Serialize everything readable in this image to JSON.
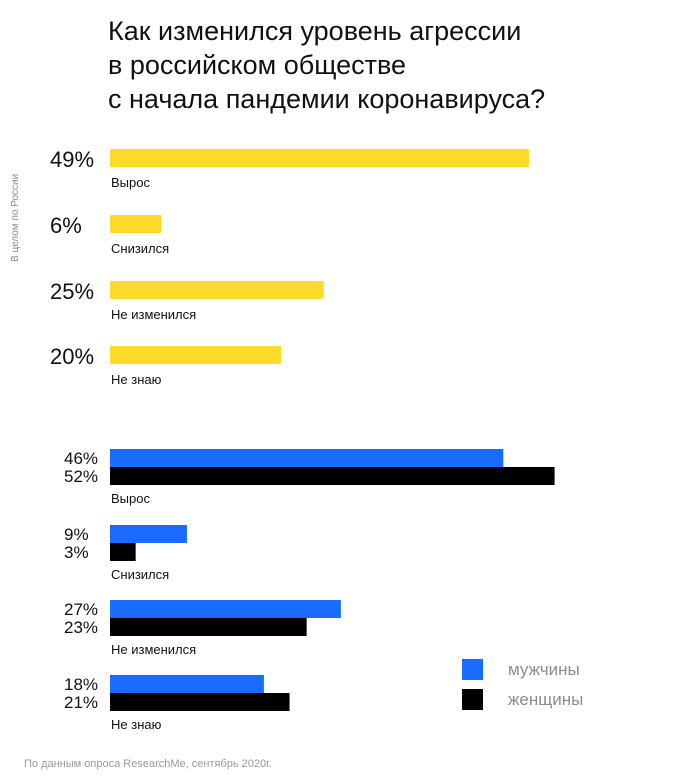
{
  "title_lines": [
    "Как изменился уровень агрессии",
    "в российском обществе",
    "с начала пандемии коронавируса?"
  ],
  "side_label": "В целом по России",
  "footnote": "По данным опроса ResearchMe, сентябрь 2020г.",
  "legend": {
    "men": "мужчины",
    "women": "женщины"
  },
  "colors": {
    "overall": "#FFDA2A",
    "men": "#1A6BFF",
    "women": "#000000"
  },
  "chart_data": [
    {
      "type": "bar",
      "orientation": "horizontal",
      "group": "В целом по России",
      "categories": [
        "Вырос",
        "Снизился",
        "Не изменился",
        "Не знаю"
      ],
      "series": [
        {
          "key": "overall",
          "values": [
            49,
            6,
            25,
            20
          ],
          "labels": [
            "49%",
            "6%",
            "25%",
            "20%"
          ]
        }
      ]
    },
    {
      "type": "bar",
      "orientation": "horizontal",
      "categories": [
        "Вырос",
        "Снизился",
        "Не изменился",
        "Не знаю"
      ],
      "series": [
        {
          "name": "мужчины",
          "key": "men",
          "values": [
            46,
            9,
            27,
            18
          ],
          "labels": [
            "46%",
            "9%",
            "27%",
            "18%"
          ]
        },
        {
          "name": "женщины",
          "key": "women",
          "values": [
            52,
            3,
            23,
            21
          ],
          "labels": [
            "52%",
            "3%",
            "23%",
            "21%"
          ]
        }
      ]
    }
  ]
}
